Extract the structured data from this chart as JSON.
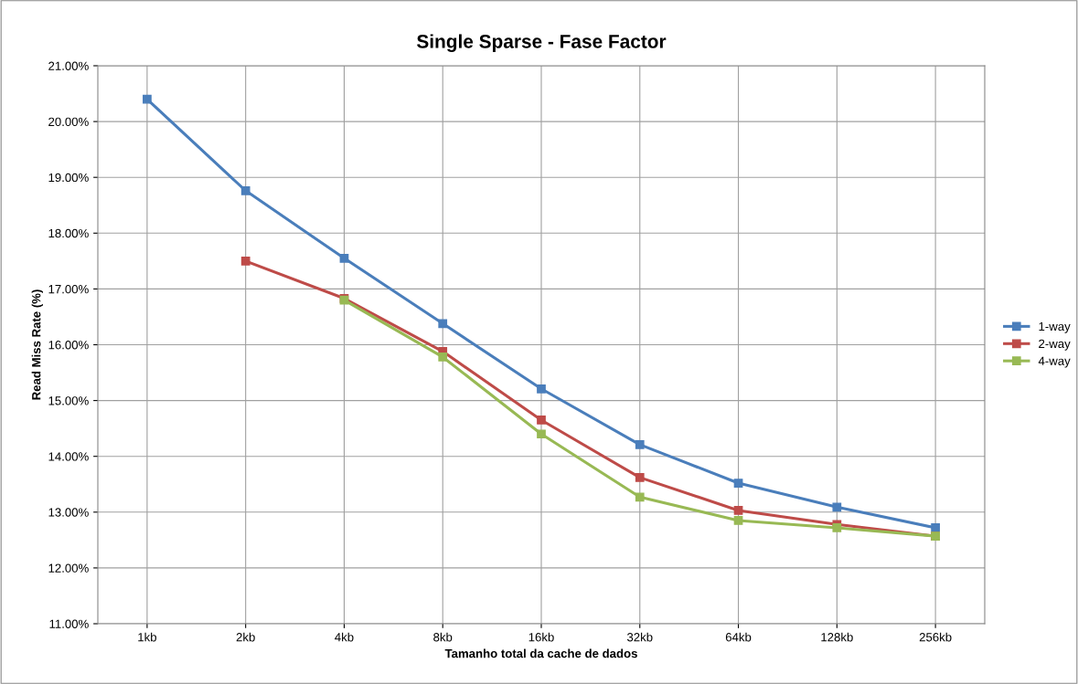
{
  "chart_data": {
    "type": "line",
    "title": "Single Sparse - Fase Factor",
    "xlabel": "Tamanho total da cache de dados",
    "ylabel": "Read Miss Rate (%)",
    "categories": [
      "1kb",
      "2kb",
      "4kb",
      "8kb",
      "16kb",
      "32kb",
      "64kb",
      "128kb",
      "256kb"
    ],
    "series": [
      {
        "name": "1-way",
        "color": "#4a7ebb",
        "values": [
          20.4,
          18.76,
          17.55,
          16.38,
          15.21,
          14.21,
          13.52,
          13.09,
          12.72
        ]
      },
      {
        "name": "2-way",
        "color": "#be4b48",
        "values": [
          null,
          17.5,
          16.83,
          15.88,
          14.65,
          13.62,
          13.03,
          12.78,
          12.57
        ]
      },
      {
        "name": "4-way",
        "color": "#98b954",
        "values": [
          null,
          null,
          16.8,
          15.78,
          14.4,
          13.27,
          12.85,
          12.72,
          12.57
        ]
      }
    ],
    "ylim": [
      11,
      21
    ],
    "yticks": [
      {
        "value": 11,
        "label": "11.00%"
      },
      {
        "value": 12,
        "label": "12.00%"
      },
      {
        "value": 13,
        "label": "13.00%"
      },
      {
        "value": 14,
        "label": "14.00%"
      },
      {
        "value": 15,
        "label": "15.00%"
      },
      {
        "value": 16,
        "label": "16.00%"
      },
      {
        "value": 17,
        "label": "17.00%"
      },
      {
        "value": 18,
        "label": "18.00%"
      },
      {
        "value": 19,
        "label": "19.00%"
      },
      {
        "value": 20,
        "label": "20.00%"
      },
      {
        "value": 21,
        "label": "21.00%"
      }
    ],
    "grid": true,
    "legend": "right",
    "marker": "square",
    "line_style": "solid"
  }
}
